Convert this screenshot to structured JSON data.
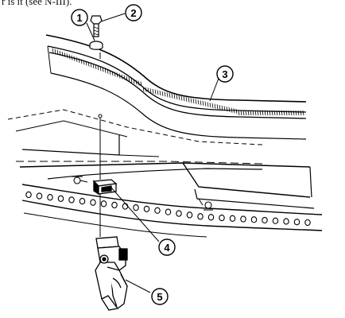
{
  "header_fragment": "r is it (see N-III).",
  "callouts": [
    {
      "number": "1",
      "part": "nut"
    },
    {
      "number": "2",
      "part": "screw"
    },
    {
      "number": "3",
      "part": "body panel"
    },
    {
      "number": "4",
      "part": "retainer block"
    },
    {
      "number": "5",
      "part": "latch assembly"
    }
  ]
}
